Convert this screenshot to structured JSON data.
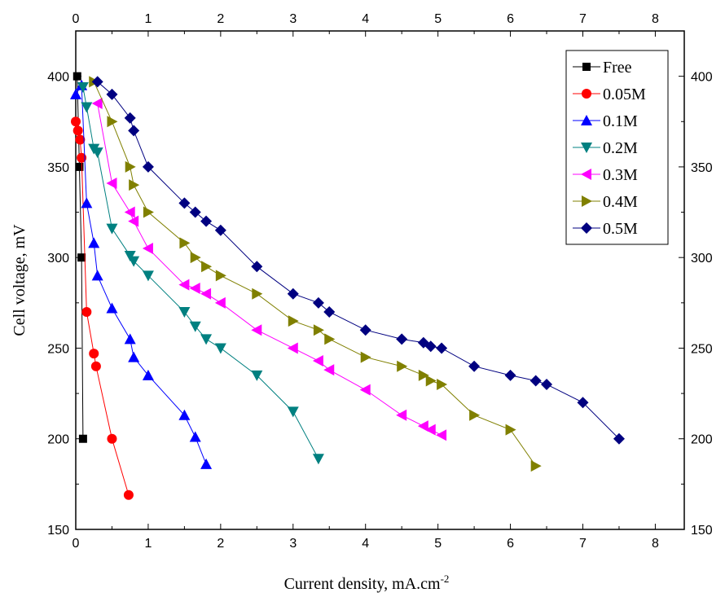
{
  "chart_data": {
    "type": "line",
    "xlabel": "Current density, mA.cm",
    "xlabel_sup": "-2",
    "ylabel": "Cell voltage, mV",
    "xlim": [
      0,
      8.4
    ],
    "ylim": [
      150,
      425
    ],
    "xticks": [
      "0",
      "1",
      "2",
      "3",
      "4",
      "5",
      "6",
      "7",
      "8"
    ],
    "yticks": [
      "150",
      "200",
      "250",
      "300",
      "350",
      "400"
    ],
    "grid": false,
    "legend_position": "top-right",
    "series": [
      {
        "name": "Free",
        "marker": "square",
        "color": "#000000",
        "points": [
          [
            0.02,
            400
          ],
          [
            0.05,
            350
          ],
          [
            0.08,
            300
          ],
          [
            0.1,
            200
          ]
        ]
      },
      {
        "name": "0.05M",
        "marker": "circle",
        "color": "#ff0000",
        "points": [
          [
            0,
            375
          ],
          [
            0.03,
            370
          ],
          [
            0.06,
            365
          ],
          [
            0.08,
            355
          ],
          [
            0.15,
            270
          ],
          [
            0.25,
            247
          ],
          [
            0.28,
            240
          ],
          [
            0.5,
            200
          ],
          [
            0.73,
            169
          ]
        ]
      },
      {
        "name": "0.1M",
        "marker": "triangle-up",
        "color": "#0000ff",
        "points": [
          [
            0,
            390
          ],
          [
            0.08,
            395
          ],
          [
            0.15,
            330
          ],
          [
            0.25,
            308
          ],
          [
            0.3,
            290
          ],
          [
            0.5,
            272
          ],
          [
            0.75,
            255
          ],
          [
            0.8,
            245
          ],
          [
            1.0,
            235
          ],
          [
            1.5,
            213
          ],
          [
            1.65,
            201
          ],
          [
            1.8,
            186
          ]
        ]
      },
      {
        "name": "0.2M",
        "marker": "triangle-down",
        "color": "#008080",
        "points": [
          [
            0.1,
            394
          ],
          [
            0.15,
            383
          ],
          [
            0.25,
            360
          ],
          [
            0.3,
            358
          ],
          [
            0.5,
            316
          ],
          [
            0.75,
            301
          ],
          [
            0.8,
            298
          ],
          [
            1.0,
            290
          ],
          [
            1.5,
            270
          ],
          [
            1.65,
            262
          ],
          [
            1.8,
            255
          ],
          [
            2.0,
            250
          ],
          [
            2.5,
            235
          ],
          [
            3.0,
            215
          ],
          [
            3.35,
            189
          ]
        ]
      },
      {
        "name": "0.3M",
        "marker": "triangle-left",
        "color": "#ff00ff",
        "points": [
          [
            0.3,
            385
          ],
          [
            0.5,
            341
          ],
          [
            0.75,
            325
          ],
          [
            0.8,
            320
          ],
          [
            1.0,
            305
          ],
          [
            1.5,
            285
          ],
          [
            1.65,
            283
          ],
          [
            1.8,
            280
          ],
          [
            2.0,
            275
          ],
          [
            2.5,
            260
          ],
          [
            3.0,
            250
          ],
          [
            3.35,
            243
          ],
          [
            3.5,
            238
          ],
          [
            4.0,
            227
          ],
          [
            4.5,
            213
          ],
          [
            4.8,
            207
          ],
          [
            4.9,
            205
          ],
          [
            5.05,
            202
          ]
        ]
      },
      {
        "name": "0.4M",
        "marker": "triangle-right",
        "color": "#808000",
        "points": [
          [
            0.25,
            397
          ],
          [
            0.5,
            375
          ],
          [
            0.75,
            350
          ],
          [
            0.8,
            340
          ],
          [
            1.0,
            325
          ],
          [
            1.5,
            308
          ],
          [
            1.65,
            300
          ],
          [
            1.8,
            295
          ],
          [
            2.0,
            290
          ],
          [
            2.5,
            280
          ],
          [
            3.0,
            265
          ],
          [
            3.35,
            260
          ],
          [
            3.5,
            255
          ],
          [
            4.0,
            245
          ],
          [
            4.5,
            240
          ],
          [
            4.8,
            235
          ],
          [
            4.9,
            232
          ],
          [
            5.05,
            230
          ],
          [
            5.5,
            213
          ],
          [
            6.0,
            205
          ],
          [
            6.35,
            185
          ]
        ]
      },
      {
        "name": "0.5M",
        "marker": "diamond",
        "color": "#000080",
        "points": [
          [
            0.3,
            397
          ],
          [
            0.5,
            390
          ],
          [
            0.75,
            377
          ],
          [
            0.8,
            370
          ],
          [
            1.0,
            350
          ],
          [
            1.5,
            330
          ],
          [
            1.65,
            325
          ],
          [
            1.8,
            320
          ],
          [
            2.0,
            315
          ],
          [
            2.5,
            295
          ],
          [
            3.0,
            280
          ],
          [
            3.35,
            275
          ],
          [
            3.5,
            270
          ],
          [
            4.0,
            260
          ],
          [
            4.5,
            255
          ],
          [
            4.8,
            253
          ],
          [
            4.9,
            251
          ],
          [
            5.05,
            250
          ],
          [
            5.5,
            240
          ],
          [
            6.0,
            235
          ],
          [
            6.35,
            232
          ],
          [
            6.5,
            230
          ],
          [
            7.0,
            220
          ],
          [
            7.5,
            200
          ]
        ]
      }
    ]
  }
}
